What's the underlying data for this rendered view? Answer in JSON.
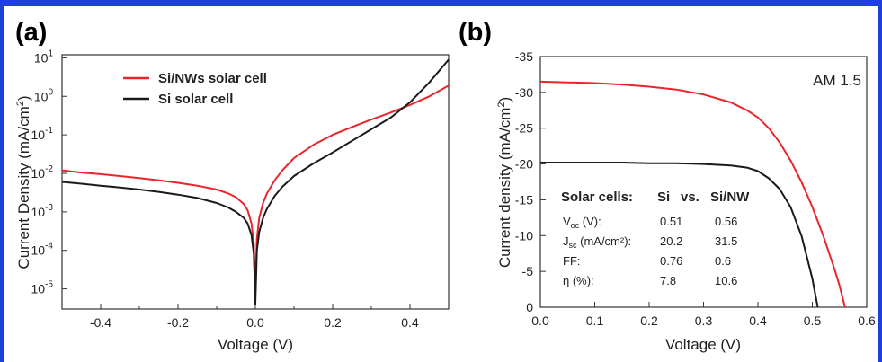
{
  "colors": {
    "frame": "#1f3fdc",
    "red_series": "#e8252b",
    "black_series": "#1a1a1a"
  },
  "chart_data": [
    {
      "type": "line",
      "panel_label": "(a)",
      "xlabel": "Voltage (V)",
      "ylabel": "Current Density (mA/cm²)",
      "ylabel_main": "Current Density (mA/cm",
      "ylabel_sup": "2",
      "ylabel_end": ")",
      "xlim": [
        -0.5,
        0.5
      ],
      "ylim": [
        3e-06,
        12
      ],
      "yscale": "log",
      "xticks": [
        "-0.4",
        "-0.2",
        "0.0",
        "0.2",
        "0.4"
      ],
      "yticks": [
        {
          "base": "10",
          "exp": "1"
        },
        {
          "base": "10",
          "exp": "0"
        },
        {
          "base": "10",
          "exp": "-1"
        },
        {
          "base": "10",
          "exp": "-2"
        },
        {
          "base": "10",
          "exp": "-3"
        },
        {
          "base": "10",
          "exp": "-4"
        },
        {
          "base": "10",
          "exp": "-5"
        }
      ],
      "legend_position": "top-left",
      "series": [
        {
          "name": "Si/NWs solar cell",
          "color": "#e8252b",
          "x": [
            -0.5,
            -0.45,
            -0.4,
            -0.35,
            -0.3,
            -0.25,
            -0.2,
            -0.15,
            -0.1,
            -0.07,
            -0.05,
            -0.03,
            -0.02,
            -0.01,
            -0.004,
            0.0,
            0.004,
            0.01,
            0.02,
            0.03,
            0.05,
            0.07,
            0.1,
            0.15,
            0.2,
            0.25,
            0.3,
            0.35,
            0.4,
            0.45,
            0.5
          ],
          "y": [
            0.012,
            0.0105,
            0.0095,
            0.0085,
            0.0075,
            0.0066,
            0.0057,
            0.0048,
            0.0038,
            0.003,
            0.0024,
            0.0016,
            0.0011,
            0.0005,
            0.00015,
            8e-06,
            0.0002,
            0.0007,
            0.0017,
            0.003,
            0.0066,
            0.012,
            0.025,
            0.055,
            0.1,
            0.16,
            0.25,
            0.38,
            0.6,
            1.0,
            1.9
          ]
        },
        {
          "name": "Si solar cell",
          "color": "#1a1a1a",
          "x": [
            -0.5,
            -0.45,
            -0.4,
            -0.35,
            -0.3,
            -0.25,
            -0.2,
            -0.15,
            -0.1,
            -0.07,
            -0.05,
            -0.03,
            -0.02,
            -0.01,
            -0.004,
            0.0,
            0.004,
            0.01,
            0.02,
            0.03,
            0.05,
            0.07,
            0.1,
            0.15,
            0.2,
            0.25,
            0.3,
            0.35,
            0.4,
            0.45,
            0.5
          ],
          "y": [
            0.006,
            0.0054,
            0.0048,
            0.0043,
            0.0038,
            0.0033,
            0.0028,
            0.0023,
            0.0017,
            0.0013,
            0.001,
            0.0007,
            0.0005,
            0.00025,
            8e-05,
            4e-06,
            0.0001,
            0.0003,
            0.0007,
            0.0012,
            0.0026,
            0.0045,
            0.0085,
            0.018,
            0.035,
            0.07,
            0.14,
            0.28,
            0.7,
            2.3,
            9.0
          ]
        }
      ]
    },
    {
      "type": "line",
      "panel_label": "(b)",
      "xlabel": "Voltage (V)",
      "ylabel": "Current density (mA/cm²)",
      "ylabel_main": "Current density (mA/cm",
      "ylabel_sup": "2",
      "ylabel_end": ")",
      "xlim": [
        0.0,
        0.6
      ],
      "ylim": [
        0,
        -35
      ],
      "xticks": [
        "0.0",
        "0.1",
        "0.2",
        "0.3",
        "0.4",
        "0.5",
        "0.6"
      ],
      "yticks": [
        "-35",
        "-30",
        "-25",
        "-20",
        "-15",
        "-10",
        "-5",
        "0"
      ],
      "annotation": "AM 1.5",
      "series": [
        {
          "name": "Si/NW",
          "color": "#e8252b",
          "x": [
            0.0,
            0.05,
            0.1,
            0.15,
            0.2,
            0.25,
            0.3,
            0.35,
            0.38,
            0.4,
            0.42,
            0.44,
            0.46,
            0.48,
            0.5,
            0.52,
            0.54,
            0.55,
            0.56
          ],
          "y": [
            -31.5,
            -31.4,
            -31.3,
            -31.1,
            -30.8,
            -30.4,
            -29.7,
            -28.6,
            -27.5,
            -26.5,
            -25.0,
            -23.0,
            -20.5,
            -17.5,
            -14.0,
            -10.0,
            -5.5,
            -3.0,
            0
          ]
        },
        {
          "name": "Si",
          "color": "#1a1a1a",
          "x": [
            0.0,
            0.05,
            0.1,
            0.15,
            0.2,
            0.25,
            0.3,
            0.35,
            0.38,
            0.4,
            0.42,
            0.44,
            0.46,
            0.48,
            0.49,
            0.5,
            0.51
          ],
          "y": [
            -20.2,
            -20.2,
            -20.2,
            -20.2,
            -20.1,
            -20.1,
            -20.0,
            -19.8,
            -19.5,
            -19.0,
            -18.0,
            -16.5,
            -14.0,
            -10.0,
            -7.0,
            -4.0,
            0
          ]
        }
      ],
      "table": {
        "header": [
          "Solar cells:",
          "Si",
          "vs.",
          "Si/NW"
        ],
        "rows": [
          {
            "label": "V",
            "sub": "oc",
            "label_end": " (V):",
            "si": "0.51",
            "sinw": "0.56"
          },
          {
            "label": "J",
            "sub": "sc",
            "label_end": " (mA/cm²):",
            "si": "20.2",
            "sinw": "31.5"
          },
          {
            "label": "FF:",
            "sub": "",
            "label_end": "",
            "si": "0.76",
            "sinw": "0.6"
          },
          {
            "label": "η (%):",
            "sub": "",
            "label_end": "",
            "si": "7.8",
            "sinw": "10.6"
          }
        ]
      }
    }
  ]
}
